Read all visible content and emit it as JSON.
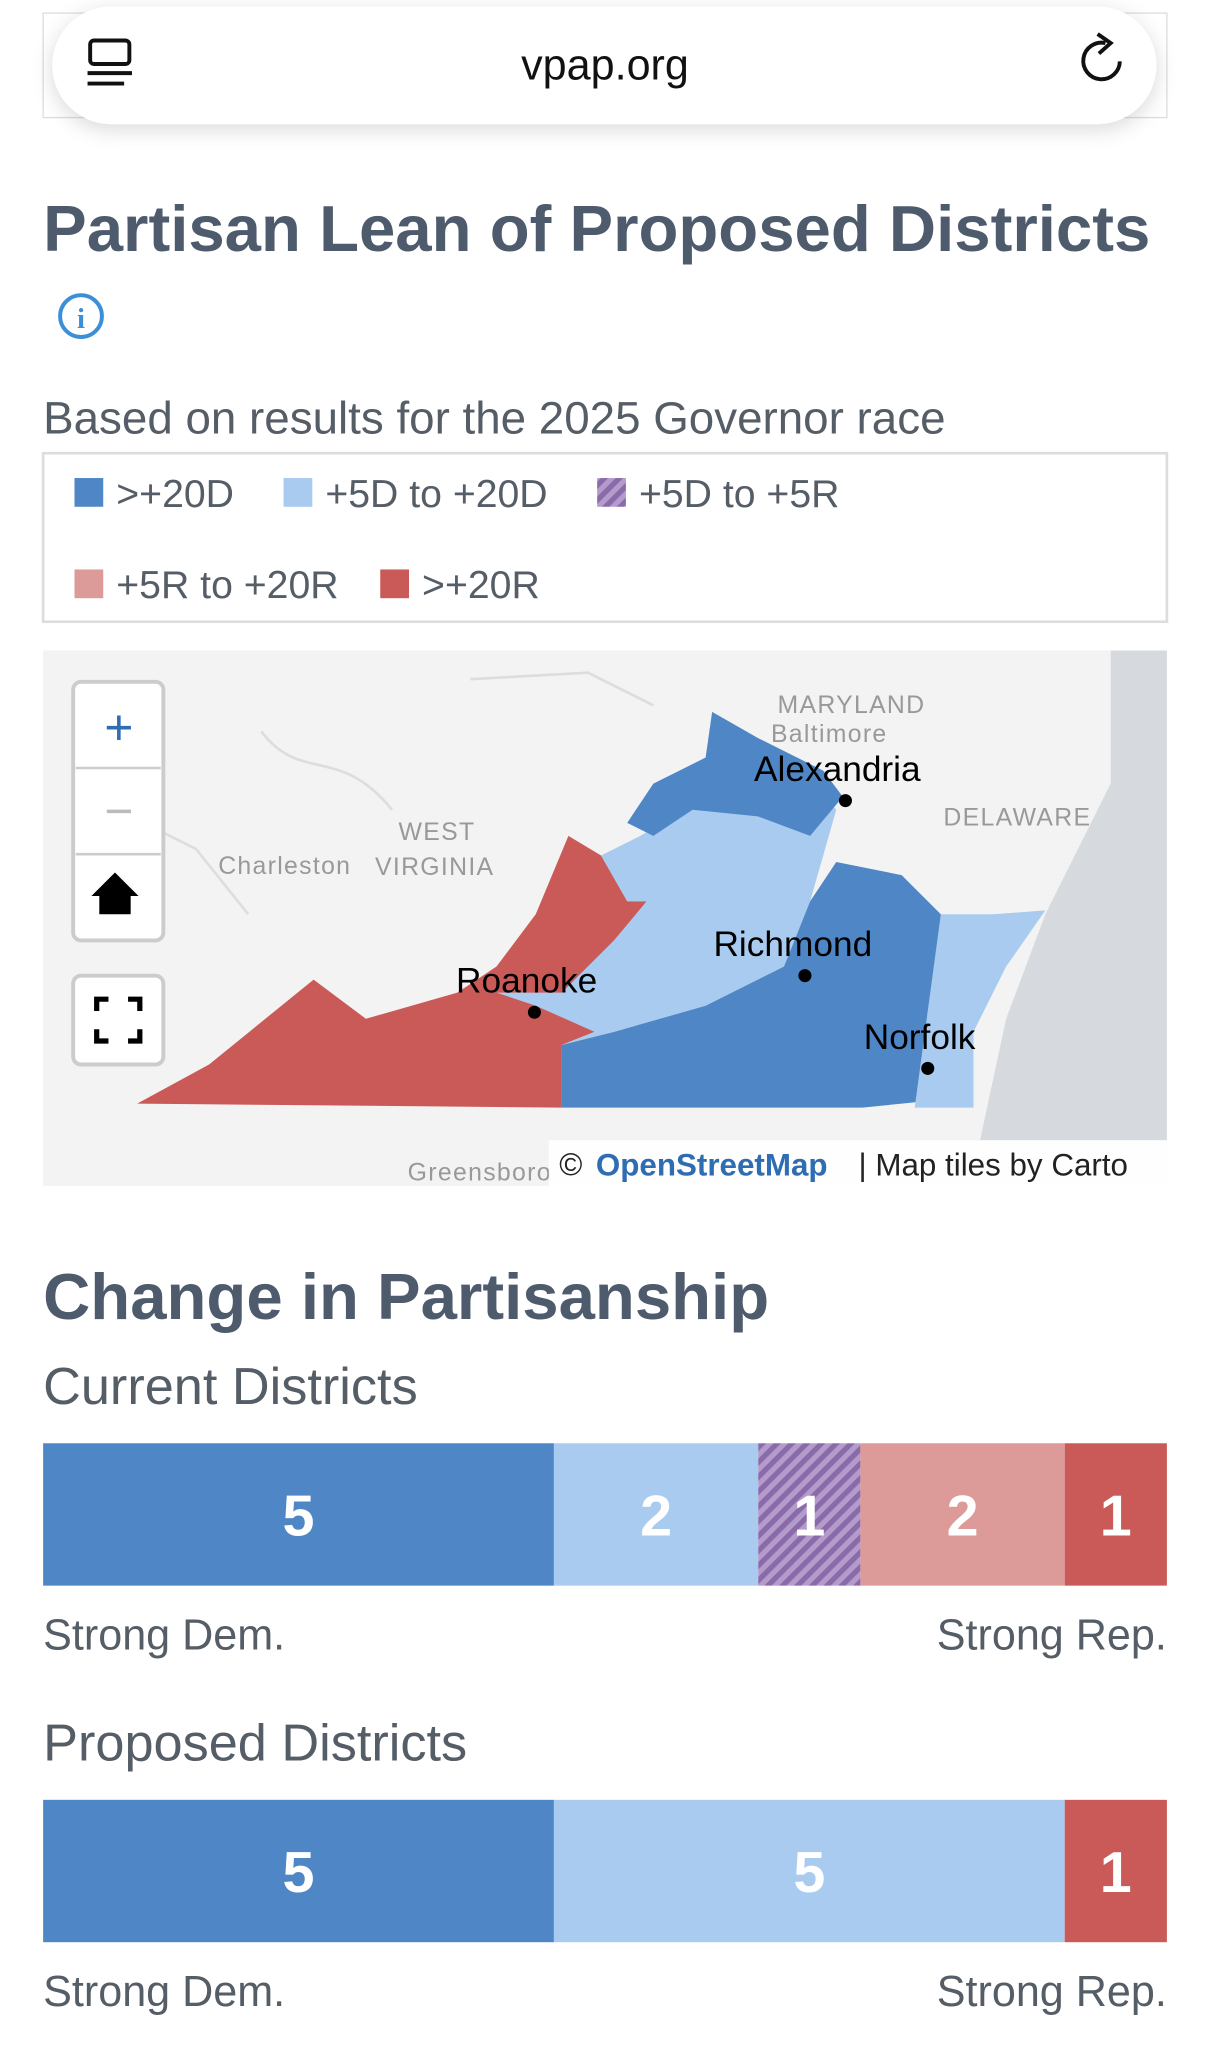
{
  "browser": {
    "url": "vpap.org"
  },
  "map_section": {
    "title": "Partisan Lean of Proposed Districts",
    "subtitle": "Based on results for the 2025 Governor race",
    "legend": [
      {
        "label": ">+20D",
        "color": "#4f86c6"
      },
      {
        "label": "+5D to +20D",
        "color": "#a9cbef"
      },
      {
        "label": "+5D to +5R",
        "color": "#8a6aa8",
        "hatch": true
      },
      {
        "label": "+5R to +20R",
        "color": "#dc9a98"
      },
      {
        "label": ">+20R",
        "color": "#c95a57"
      }
    ],
    "map_labels": {
      "maryland": "MARYLAND",
      "baltimore": "Baltimore",
      "alexandria": "Alexandria",
      "delaware": "DELAWARE",
      "west": "WEST",
      "virginia": "VIRGINIA",
      "charleston": "Charleston",
      "richmond": "Richmond",
      "roanoke": "Roanoke",
      "norfolk": "Norfolk",
      "greensboro": "Greensboro"
    },
    "attribution": {
      "prefix": "©",
      "link": "OpenStreetMap",
      "suffix": "| Map tiles by Carto"
    },
    "zoom_in": "+",
    "zoom_out": "−"
  },
  "change_section": {
    "title": "Change in Partisanship",
    "bars": [
      {
        "title": "Current Districts",
        "left_label": "Strong Dem.",
        "right_label": "Strong Rep.",
        "segments": [
          {
            "value": 5,
            "color": "#4f86c6"
          },
          {
            "value": 2,
            "color": "#a9cbef"
          },
          {
            "value": 1,
            "color": "#8a6aa8",
            "hatch": true
          },
          {
            "value": 2,
            "color": "#dc9a98"
          },
          {
            "value": 1,
            "color": "#c95a57"
          }
        ]
      },
      {
        "title": "Proposed Districts",
        "left_label": "Strong Dem.",
        "right_label": "Strong Rep.",
        "segments": [
          {
            "value": 5,
            "color": "#4f86c6"
          },
          {
            "value": 5,
            "color": "#a9cbef"
          },
          {
            "value": 1,
            "color": "#c95a57"
          }
        ]
      }
    ]
  }
}
